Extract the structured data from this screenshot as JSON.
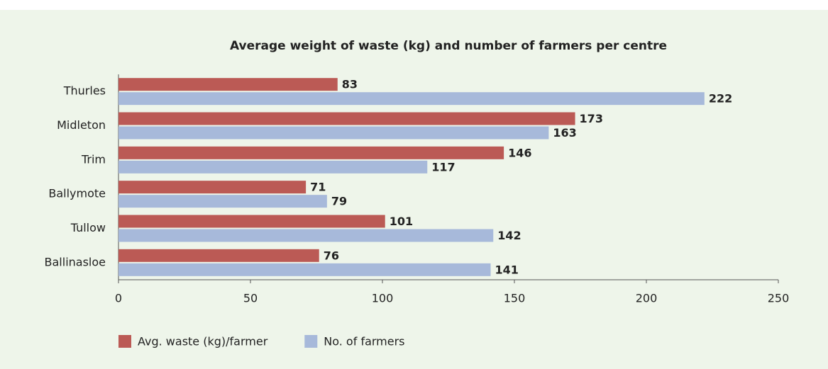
{
  "chart_data": {
    "type": "bar",
    "orientation": "horizontal",
    "title": "Average weight of waste (kg) and number of farmers per centre",
    "categories": [
      "Thurles",
      "Midleton",
      "Trim",
      "Ballymote",
      "Tullow",
      "Ballinasloe"
    ],
    "series": [
      {
        "name": "Avg. waste (kg)/farmer",
        "color": "#bb5a55",
        "values": [
          83,
          173,
          146,
          71,
          101,
          76
        ]
      },
      {
        "name": "No. of farmers",
        "color": "#a7b9da",
        "values": [
          222,
          163,
          117,
          79,
          142,
          141
        ]
      }
    ],
    "xlim": [
      0,
      250
    ],
    "xticks": [
      0,
      50,
      100,
      150,
      200,
      250
    ],
    "legend": "bottom-left",
    "grid": false
  }
}
